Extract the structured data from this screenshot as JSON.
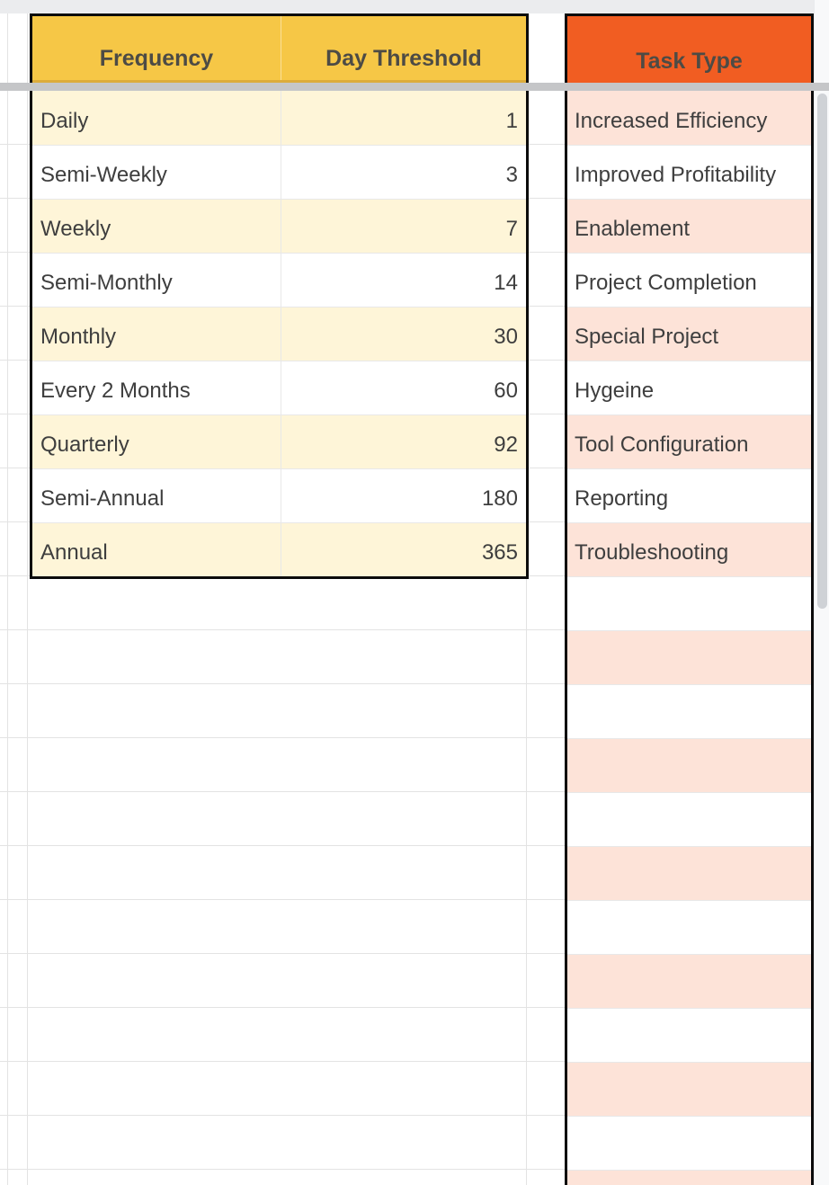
{
  "colors": {
    "white": "#FFFFFF",
    "strip": "#EBECEE",
    "gridline": "#E3E3E3",
    "separator": "#E8E8E8",
    "bar": "#C5C6C8",
    "black": "#0B0B0B",
    "yellow": "#F6C746",
    "yellow_edge": "#DCAC3C",
    "yellow_light": "#FEF5D8",
    "orange": "#F15D22",
    "pink": "#FDE3D8",
    "track": "#F8F9FA",
    "thumb": "#CFD2D6",
    "text": "#3E3E3E",
    "header_text": "#4D4B45"
  },
  "frequency_table": {
    "title_row": {
      "frequency_label": "Frequency",
      "threshold_label": "Day Threshold"
    },
    "rows": [
      {
        "frequency": "Daily",
        "threshold": 1
      },
      {
        "frequency": "Semi-Weekly",
        "threshold": 3
      },
      {
        "frequency": "Weekly",
        "threshold": 7
      },
      {
        "frequency": "Semi-Monthly",
        "threshold": 14
      },
      {
        "frequency": "Monthly",
        "threshold": 30
      },
      {
        "frequency": "Every 2 Months",
        "threshold": 60
      },
      {
        "frequency": "Quarterly",
        "threshold": 92
      },
      {
        "frequency": "Semi-Annual",
        "threshold": 180
      },
      {
        "frequency": "Annual",
        "threshold": 365
      }
    ]
  },
  "task_table": {
    "header_label": "Task Type",
    "rows": [
      {
        "task": "Increased Efficiency"
      },
      {
        "task": "Improved Profitability"
      },
      {
        "task": "Enablement"
      },
      {
        "task": "Project Completion"
      },
      {
        "task": "Special Project"
      },
      {
        "task": "Hygeine"
      },
      {
        "task": "Tool Configuration"
      },
      {
        "task": "Reporting"
      },
      {
        "task": "Troubleshooting"
      }
    ],
    "empty_striped_rows": 12
  }
}
